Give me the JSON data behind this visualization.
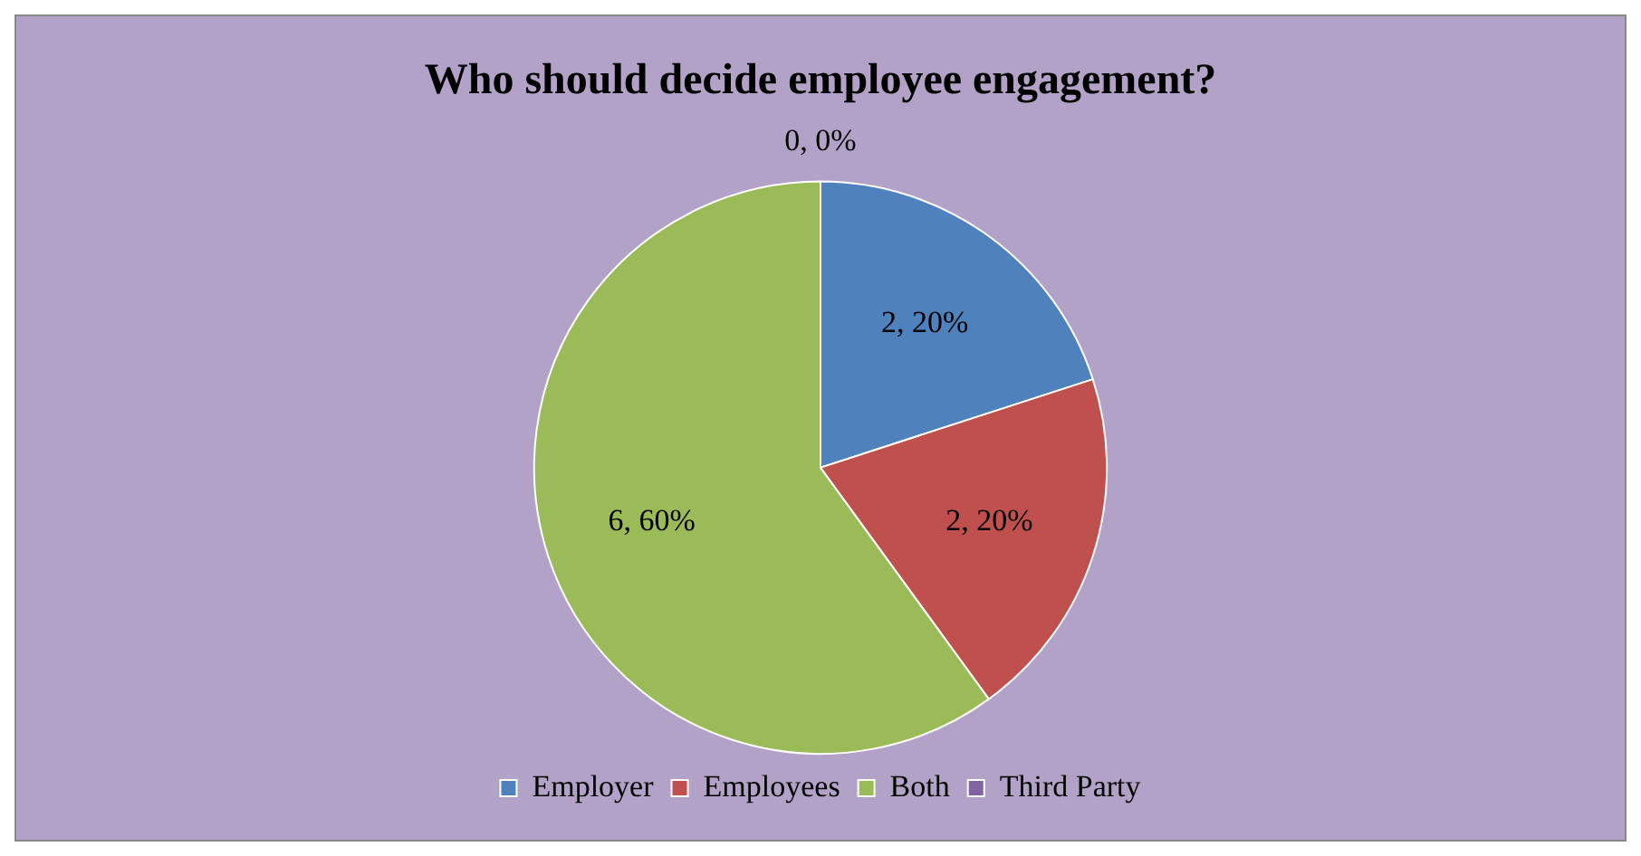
{
  "chart_data": {
    "type": "pie",
    "title": "Who should decide employee engagement?",
    "categories": [
      "Employer",
      "Employees",
      "Both",
      "Third Party"
    ],
    "values": [
      2,
      2,
      6,
      0
    ],
    "colors": [
      "#4f81bd",
      "#c0504d",
      "#9bbb59",
      "#8064a2"
    ],
    "value_labels": [
      "2, 20%",
      "2, 20%",
      "6, 60%",
      "0, 0%"
    ],
    "legend": "bottom"
  }
}
